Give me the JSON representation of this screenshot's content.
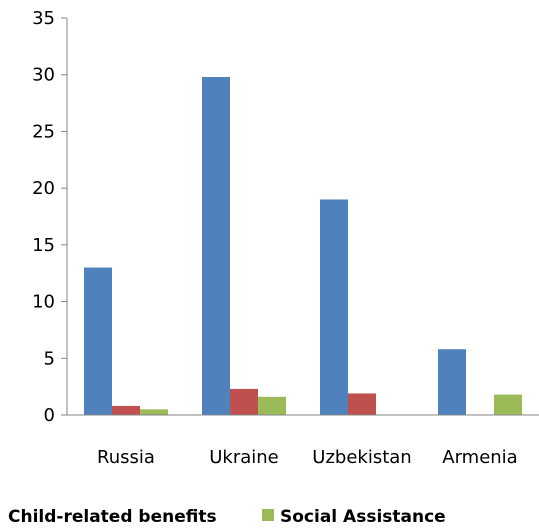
{
  "chart_data": {
    "type": "bar",
    "categories": [
      "Russia",
      "Ukraine",
      "Uzbekistan",
      "Armenia"
    ],
    "series": [
      {
        "name": "Child-related benefits",
        "color": "#4F81BD",
        "values": [
          13.0,
          29.8,
          19.0,
          5.8
        ]
      },
      {
        "name": "",
        "color": "#C0504D",
        "values": [
          0.8,
          2.3,
          1.9,
          0
        ]
      },
      {
        "name": "Social Assistance",
        "color": "#9BBB59",
        "values": [
          0.5,
          1.6,
          0,
          1.8
        ]
      }
    ],
    "ylim": [
      0,
      35
    ],
    "yticks": [
      0,
      5,
      10,
      15,
      20,
      25,
      30,
      35
    ],
    "grid": false,
    "legend_position": "bottom"
  }
}
